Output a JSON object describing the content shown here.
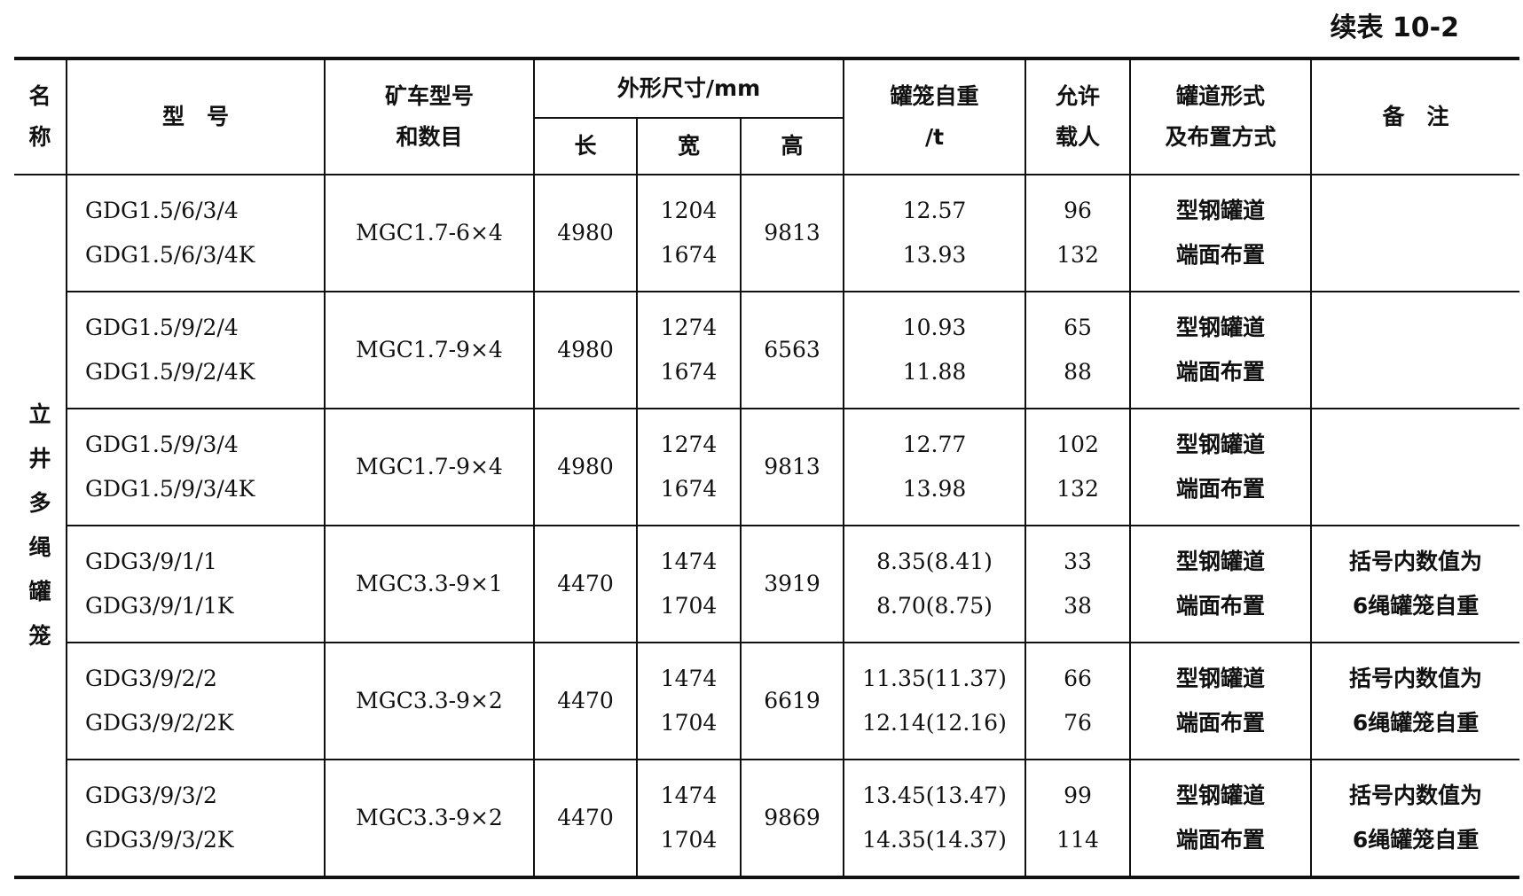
{
  "title": "续表 10-2",
  "headers": {
    "name": [
      "名",
      "称"
    ],
    "model": "型　号",
    "car": [
      "矿车型号",
      "和数目"
    ],
    "dims": "外形尺寸/mm",
    "length": "长",
    "width": "宽",
    "height": "高",
    "weight": [
      "罐笼自重",
      "/t"
    ],
    "persons": [
      "允许",
      "载人"
    ],
    "guide": [
      "罐道形式",
      "及布置方式"
    ],
    "remark": "备　注"
  },
  "group_name": [
    "立",
    "井",
    "多",
    "绳",
    "罐",
    "笼"
  ],
  "rows": [
    {
      "model": [
        "GDG1.5/6/3/4",
        "GDG1.5/6/3/4K"
      ],
      "car": "MGC1.7-6×4",
      "length": "4980",
      "width": [
        "1204",
        "1674"
      ],
      "height": "9813",
      "weight": [
        "12.57",
        "13.93"
      ],
      "persons": [
        "96",
        "132"
      ],
      "guide": [
        "型钢罐道",
        "端面布置"
      ],
      "remark": [
        "",
        ""
      ]
    },
    {
      "model": [
        "GDG1.5/9/2/4",
        "GDG1.5/9/2/4K"
      ],
      "car": "MGC1.7-9×4",
      "length": "4980",
      "width": [
        "1274",
        "1674"
      ],
      "height": "6563",
      "weight": [
        "10.93",
        "11.88"
      ],
      "persons": [
        "65",
        "88"
      ],
      "guide": [
        "型钢罐道",
        "端面布置"
      ],
      "remark": [
        "",
        ""
      ]
    },
    {
      "model": [
        "GDG1.5/9/3/4",
        "GDG1.5/9/3/4K"
      ],
      "car": "MGC1.7-9×4",
      "length": "4980",
      "width": [
        "1274",
        "1674"
      ],
      "height": "9813",
      "weight": [
        "12.77",
        "13.98"
      ],
      "persons": [
        "102",
        "132"
      ],
      "guide": [
        "型钢罐道",
        "端面布置"
      ],
      "remark": [
        "",
        ""
      ]
    },
    {
      "model": [
        "GDG3/9/1/1",
        "GDG3/9/1/1K"
      ],
      "car": "MGC3.3-9×1",
      "length": "4470",
      "width": [
        "1474",
        "1704"
      ],
      "height": "3919",
      "weight": [
        "8.35(8.41)",
        "8.70(8.75)"
      ],
      "persons": [
        "33",
        "38"
      ],
      "guide": [
        "型钢罐道",
        "端面布置"
      ],
      "remark": [
        "括号内数值为",
        "6绳罐笼自重"
      ]
    },
    {
      "model": [
        "GDG3/9/2/2",
        "GDG3/9/2/2K"
      ],
      "car": "MGC3.3-9×2",
      "length": "4470",
      "width": [
        "1474",
        "1704"
      ],
      "height": "6619",
      "weight": [
        "11.35(11.37)",
        "12.14(12.16)"
      ],
      "persons": [
        "66",
        "76"
      ],
      "guide": [
        "型钢罐道",
        "端面布置"
      ],
      "remark": [
        "括号内数值为",
        "6绳罐笼自重"
      ]
    },
    {
      "model": [
        "GDG3/9/3/2",
        "GDG3/9/3/2K"
      ],
      "car": "MGC3.3-9×2",
      "length": "4470",
      "width": [
        "1474",
        "1704"
      ],
      "height": "9869",
      "weight": [
        "13.45(13.47)",
        "14.35(14.37)"
      ],
      "persons": [
        "99",
        "114"
      ],
      "guide": [
        "型钢罐道",
        "端面布置"
      ],
      "remark": [
        "括号内数值为",
        "6绳罐笼自重"
      ]
    }
  ]
}
